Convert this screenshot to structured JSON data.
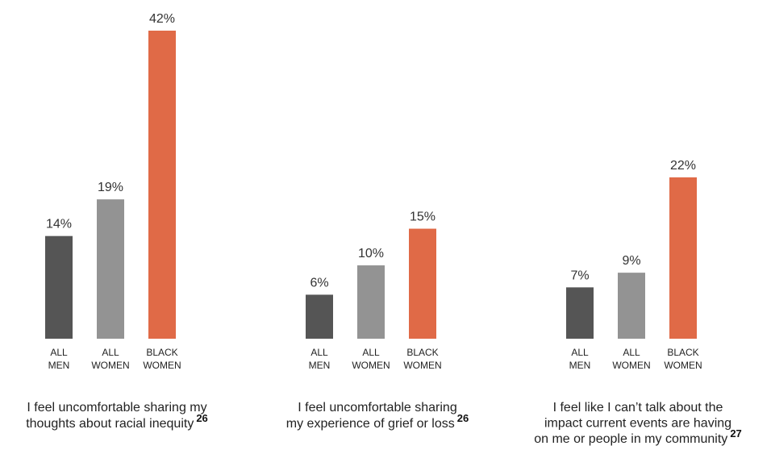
{
  "colors": {
    "all_men": "#555555",
    "all_women": "#939393",
    "black_women": "#e06a47"
  },
  "chart_data": [
    {
      "type": "bar",
      "categories": [
        [
          "ALL",
          "MEN"
        ],
        [
          "ALL",
          "WOMEN"
        ],
        [
          "BLACK",
          "WOMEN"
        ]
      ],
      "values": [
        14,
        19,
        42
      ],
      "value_labels": [
        "14%",
        "19%",
        "42%"
      ],
      "caption_lines": [
        "I feel uncomfortable sharing my",
        "thoughts about racial inequity"
      ],
      "footnote": "26",
      "ylim": [
        0,
        42
      ]
    },
    {
      "type": "bar",
      "categories": [
        [
          "ALL",
          "MEN"
        ],
        [
          "ALL",
          "WOMEN"
        ],
        [
          "BLACK",
          "WOMEN"
        ]
      ],
      "values": [
        6,
        10,
        15
      ],
      "value_labels": [
        "6%",
        "10%",
        "15%"
      ],
      "caption_lines": [
        "I feel uncomfortable sharing",
        "my experience of grief or loss"
      ],
      "footnote": "26",
      "ylim": [
        0,
        42
      ]
    },
    {
      "type": "bar",
      "categories": [
        [
          "ALL",
          "MEN"
        ],
        [
          "ALL",
          "WOMEN"
        ],
        [
          "BLACK",
          "WOMEN"
        ]
      ],
      "values": [
        7,
        9,
        22
      ],
      "value_labels": [
        "7%",
        "9%",
        "22%"
      ],
      "caption_lines": [
        "I feel like I can’t talk about the",
        "impact current events are having",
        "on me or people in my community"
      ],
      "footnote": "27",
      "ylim": [
        0,
        42
      ]
    }
  ]
}
